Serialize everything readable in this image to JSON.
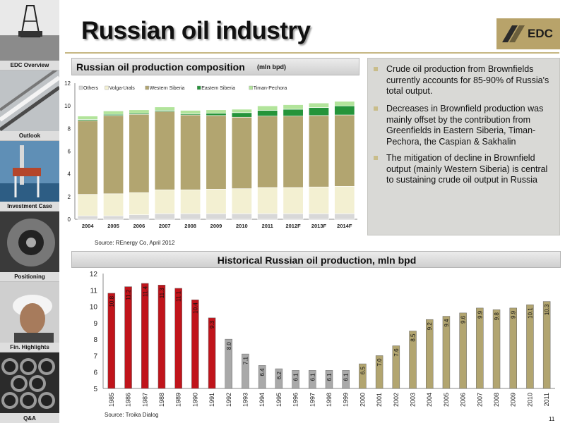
{
  "header": {
    "title": "Russian oil industry",
    "logo_text": "EDC"
  },
  "sidebar": {
    "items": [
      {
        "label": "EDC Overview"
      },
      {
        "label": "Outlook"
      },
      {
        "label": "Investment Case"
      },
      {
        "label": "Positioning"
      },
      {
        "label": "Fin. Highlights"
      },
      {
        "label": "Q&A"
      }
    ]
  },
  "panel1": {
    "title": "Russian oil production composition",
    "unit": "(mln bpd)",
    "source": "Source: REnergy Co, April 2012"
  },
  "bullets": [
    "Crude oil production from Brownfields currently accounts for 85-90% of Russia's total output.",
    "Decreases in Brownfield production was mainly offset by the contribution from Greenfields in Eastern Siberia, Timan-Pechora, the Caspian & Sakhalin",
    "The mitigation of decline in Brownfield output (mainly Western Siberia) is central to sustaining crude oil output in Russia"
  ],
  "panel2": {
    "title": "Historical Russian oil production, mln bpd",
    "source": "Source: Troika Dialog"
  },
  "page_number": "11",
  "chart_data": [
    {
      "type": "bar",
      "stacked": true,
      "categories": [
        "2004",
        "2005",
        "2006",
        "2007",
        "2008",
        "2009",
        "2010",
        "2011",
        "2012F",
        "2013F",
        "2014F"
      ],
      "series": [
        {
          "name": "Others",
          "color": "#d8d8d8",
          "values": [
            0.3,
            0.3,
            0.4,
            0.5,
            0.5,
            0.5,
            0.5,
            0.5,
            0.5,
            0.5,
            0.5
          ]
        },
        {
          "name": "Volga-Urals",
          "color": "#f3f0d2",
          "values": [
            1.9,
            1.95,
            1.95,
            2.1,
            2.1,
            2.15,
            2.2,
            2.3,
            2.3,
            2.35,
            2.4
          ]
        },
        {
          "name": "Western Siberia",
          "color": "#b2a570",
          "values": [
            6.5,
            6.9,
            6.9,
            6.9,
            6.6,
            6.5,
            6.3,
            6.3,
            6.3,
            6.3,
            6.3
          ]
        },
        {
          "name": "Eastern Siberia",
          "color": "#25943a",
          "values": [
            0.1,
            0.1,
            0.1,
            0.1,
            0.1,
            0.2,
            0.4,
            0.5,
            0.6,
            0.7,
            0.8
          ]
        },
        {
          "name": "Timan-Pechora",
          "color": "#b2e49b",
          "values": [
            0.3,
            0.3,
            0.3,
            0.3,
            0.3,
            0.3,
            0.3,
            0.4,
            0.4,
            0.4,
            0.4
          ]
        }
      ],
      "ylim": [
        0,
        12
      ],
      "yticks": [
        0,
        2,
        4,
        6,
        8,
        10,
        12
      ],
      "legend_position": "top-left"
    },
    {
      "type": "bar",
      "categories": [
        "1985",
        "1986",
        "1987",
        "1988",
        "1989",
        "1990",
        "1991",
        "1992",
        "1993",
        "1994",
        "1995",
        "1996",
        "1997",
        "1998",
        "1999",
        "2000",
        "2001",
        "2002",
        "2003",
        "2004",
        "2005",
        "2006",
        "2007",
        "2008",
        "2009",
        "2010",
        "2011"
      ],
      "values": [
        10.8,
        11.2,
        11.4,
        11.3,
        11.1,
        10.4,
        9.3,
        8.0,
        7.1,
        6.4,
        6.2,
        6.1,
        6.1,
        6.1,
        6.1,
        6.5,
        7.0,
        7.6,
        8.5,
        9.2,
        9.4,
        9.6,
        9.9,
        9.8,
        9.9,
        10.1,
        10.3
      ],
      "labels": [
        "10.8",
        "11.2",
        "11.4",
        "11.3",
        "11.1",
        "10.4",
        "9.3",
        "8.0",
        "7.1",
        "6.4",
        "6.2",
        "6.1",
        "6.1",
        "6.1",
        "6.1",
        "6.5",
        "7.0",
        "7.6",
        "8.5",
        "9.2",
        "9.4",
        "9.6",
        "9.9",
        "9.8",
        "9.9",
        "10.1",
        "10.3"
      ],
      "colors_by_group": {
        "1985-1991": "#c0141b",
        "1992-1999": "#a9a9a9",
        "2000-2011": "#b2a570"
      },
      "ylim": [
        5,
        12
      ],
      "yticks": [
        5,
        6,
        7,
        8,
        9,
        10,
        11,
        12
      ]
    }
  ]
}
